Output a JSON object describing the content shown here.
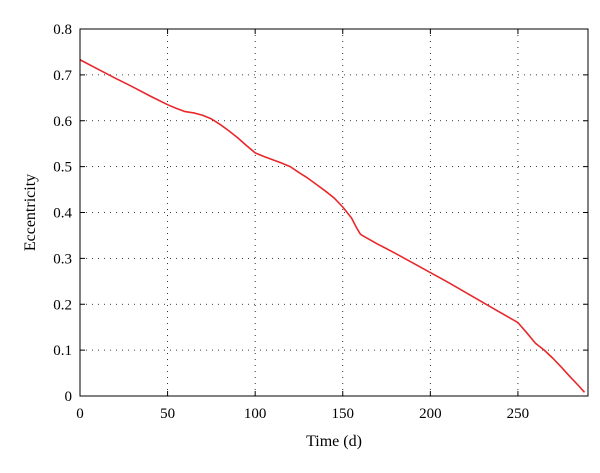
{
  "chart_data": {
    "type": "line",
    "xlabel": "Time (d)",
    "ylabel": "Eccentricity",
    "xlim": [
      0,
      290
    ],
    "ylim": [
      0,
      0.8
    ],
    "xticks": [
      0,
      50,
      100,
      150,
      200,
      250
    ],
    "yticks": [
      0,
      0.1,
      0.2,
      0.3,
      0.4,
      0.5,
      0.6,
      0.7,
      0.8
    ],
    "grid": true,
    "grid_style": "dotted",
    "series": [
      {
        "color": "#e8282b",
        "x": [
          0,
          10,
          20,
          30,
          40,
          50,
          55,
          60,
          65,
          70,
          75,
          80,
          85,
          90,
          95,
          100,
          105,
          110,
          115,
          120,
          125,
          130,
          135,
          140,
          145,
          150,
          155,
          158,
          160,
          162,
          170,
          180,
          190,
          200,
          210,
          220,
          230,
          240,
          250,
          255,
          260,
          265,
          270,
          275,
          280,
          285,
          288
        ],
        "y": [
          0.733,
          0.713,
          0.693,
          0.674,
          0.654,
          0.635,
          0.627,
          0.62,
          0.617,
          0.612,
          0.604,
          0.592,
          0.578,
          0.563,
          0.546,
          0.53,
          0.522,
          0.515,
          0.508,
          0.5,
          0.487,
          0.475,
          0.461,
          0.447,
          0.432,
          0.412,
          0.388,
          0.366,
          0.353,
          0.348,
          0.331,
          0.311,
          0.29,
          0.269,
          0.248,
          0.226,
          0.204,
          0.182,
          0.16,
          0.138,
          0.115,
          0.1,
          0.082,
          0.062,
          0.041,
          0.021,
          0.008
        ]
      }
    ]
  }
}
